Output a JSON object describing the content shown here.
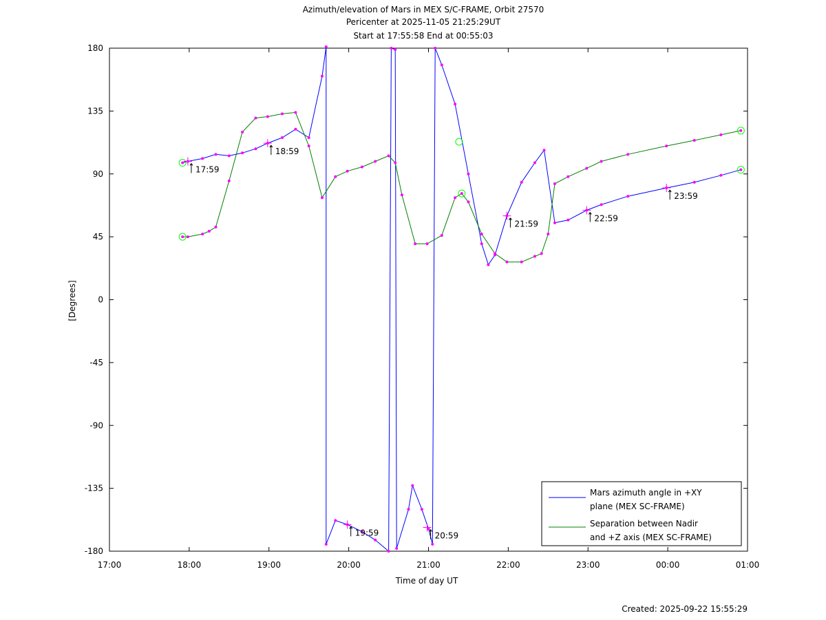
{
  "title_lines": [
    "Azimuth/elevation of Mars in MEX S/C-FRAME,  Orbit 27570",
    "Pericenter at 2025-11-05 21:25:29UT",
    "Start at 17:55:58 End at 00:55:03"
  ],
  "footer": {
    "created": "Created: 2025-09-22 15:55:29"
  },
  "colors": {
    "azimuth": "#0000ff",
    "separation": "#008000",
    "markers": "#ff00ff",
    "endpoints": "#00ff00"
  },
  "chart_data": {
    "type": "line",
    "xlabel": "Time of day UT",
    "ylabel": "[Degrees]",
    "xlim": [
      "17:00",
      "01:00"
    ],
    "ylim": [
      -180,
      180
    ],
    "x_ticks": [
      "17:00",
      "18:00",
      "19:00",
      "20:00",
      "21:00",
      "22:00",
      "23:00",
      "00:00",
      "01:00"
    ],
    "y_ticks": [
      180,
      135,
      90,
      45,
      0,
      -45,
      -90,
      -135,
      -180
    ],
    "grid": false,
    "legend_position": "bottom-right",
    "series": [
      {
        "name": "Mars azimuth angle in +XY plane (MEX SC-FRAME)",
        "legend_lines": [
          "Mars azimuth angle in +XY",
          "plane (MEX SC-FRAME)"
        ],
        "color": "#0000ff",
        "points": [
          [
            "17:55",
            98
          ],
          [
            "17:59",
            99
          ],
          [
            "18:10",
            101
          ],
          [
            "18:20",
            104
          ],
          [
            "18:30",
            103
          ],
          [
            "18:40",
            105
          ],
          [
            "18:50",
            108
          ],
          [
            "18:59",
            112
          ],
          [
            "19:10",
            116
          ],
          [
            "19:20",
            122
          ],
          [
            "19:30",
            116
          ],
          [
            "19:40",
            160
          ],
          [
            "19:43",
            181
          ],
          [
            "19:43",
            -175
          ],
          [
            "19:50",
            -158
          ],
          [
            "19:59",
            -161
          ],
          [
            "20:10",
            -166
          ],
          [
            "20:20",
            -172
          ],
          [
            "20:30",
            -180
          ],
          [
            "20:32",
            180
          ],
          [
            "20:35",
            179
          ],
          [
            "20:36",
            -178
          ],
          [
            "20:45",
            -150
          ],
          [
            "20:48",
            -133
          ],
          [
            "20:55",
            -150
          ],
          [
            "21:00",
            -164
          ],
          [
            "21:03",
            -175
          ],
          [
            "21:05",
            180
          ],
          [
            "21:10",
            168
          ],
          [
            "21:20",
            140
          ],
          [
            "21:30",
            90
          ],
          [
            "21:40",
            40
          ],
          [
            "21:45",
            25
          ],
          [
            "21:50",
            32
          ],
          [
            "21:59",
            60
          ],
          [
            "22:10",
            84
          ],
          [
            "22:20",
            98
          ],
          [
            "22:27",
            107
          ],
          [
            "22:35",
            55
          ],
          [
            "22:45",
            57
          ],
          [
            "22:59",
            64
          ],
          [
            "23:10",
            68
          ],
          [
            "23:30",
            74
          ],
          [
            "23:59",
            80
          ],
          [
            "00:20",
            84
          ],
          [
            "00:40",
            89
          ],
          [
            "00:55",
            93
          ]
        ],
        "time_labels": [
          {
            "label": "17:59",
            "x": "17:59",
            "y": 99
          },
          {
            "label": "18:59",
            "x": "18:59",
            "y": 112
          },
          {
            "label": "19:59",
            "x": "19:59",
            "y": -161
          },
          {
            "label": "20:59",
            "x": "20:59",
            "y": -163
          },
          {
            "label": "21:59",
            "x": "21:59",
            "y": 60
          },
          {
            "label": "22:59",
            "x": "22:59",
            "y": 64
          },
          {
            "label": "23:59",
            "x": "23:59",
            "y": 80
          }
        ],
        "endpoint_markers": [
          [
            "17:55",
            98
          ],
          [
            "21:23",
            113
          ],
          [
            "00:55",
            93
          ]
        ]
      },
      {
        "name": "Separation between Nadir and +Z axis (MEX SC-FRAME)",
        "legend_lines": [
          "Separation between Nadir",
          "and +Z axis (MEX SC-FRAME)"
        ],
        "color": "#008000",
        "points": [
          [
            "17:55",
            45
          ],
          [
            "17:59",
            45
          ],
          [
            "18:10",
            47
          ],
          [
            "18:15",
            49
          ],
          [
            "18:20",
            52
          ],
          [
            "18:30",
            85
          ],
          [
            "18:40",
            120
          ],
          [
            "18:50",
            130
          ],
          [
            "18:59",
            131
          ],
          [
            "19:10",
            133
          ],
          [
            "19:20",
            134
          ],
          [
            "19:30",
            110
          ],
          [
            "19:40",
            73
          ],
          [
            "19:50",
            88
          ],
          [
            "19:59",
            92
          ],
          [
            "20:10",
            95
          ],
          [
            "20:20",
            99
          ],
          [
            "20:30",
            103
          ],
          [
            "20:35",
            98
          ],
          [
            "20:40",
            75
          ],
          [
            "20:50",
            40
          ],
          [
            "20:59",
            40
          ],
          [
            "21:10",
            46
          ],
          [
            "21:20",
            73
          ],
          [
            "21:25",
            76
          ],
          [
            "21:30",
            70
          ],
          [
            "21:40",
            47
          ],
          [
            "21:50",
            33
          ],
          [
            "21:59",
            27
          ],
          [
            "22:10",
            27
          ],
          [
            "22:20",
            31
          ],
          [
            "22:25",
            33
          ],
          [
            "22:30",
            47
          ],
          [
            "22:35",
            83
          ],
          [
            "22:45",
            88
          ],
          [
            "22:59",
            94
          ],
          [
            "23:10",
            99
          ],
          [
            "23:30",
            104
          ],
          [
            "23:59",
            110
          ],
          [
            "00:20",
            114
          ],
          [
            "00:40",
            118
          ],
          [
            "00:55",
            121
          ]
        ],
        "time_labels": [],
        "endpoint_markers": [
          [
            "17:55",
            45
          ],
          [
            "21:25",
            76
          ],
          [
            "00:55",
            121
          ]
        ]
      }
    ]
  }
}
